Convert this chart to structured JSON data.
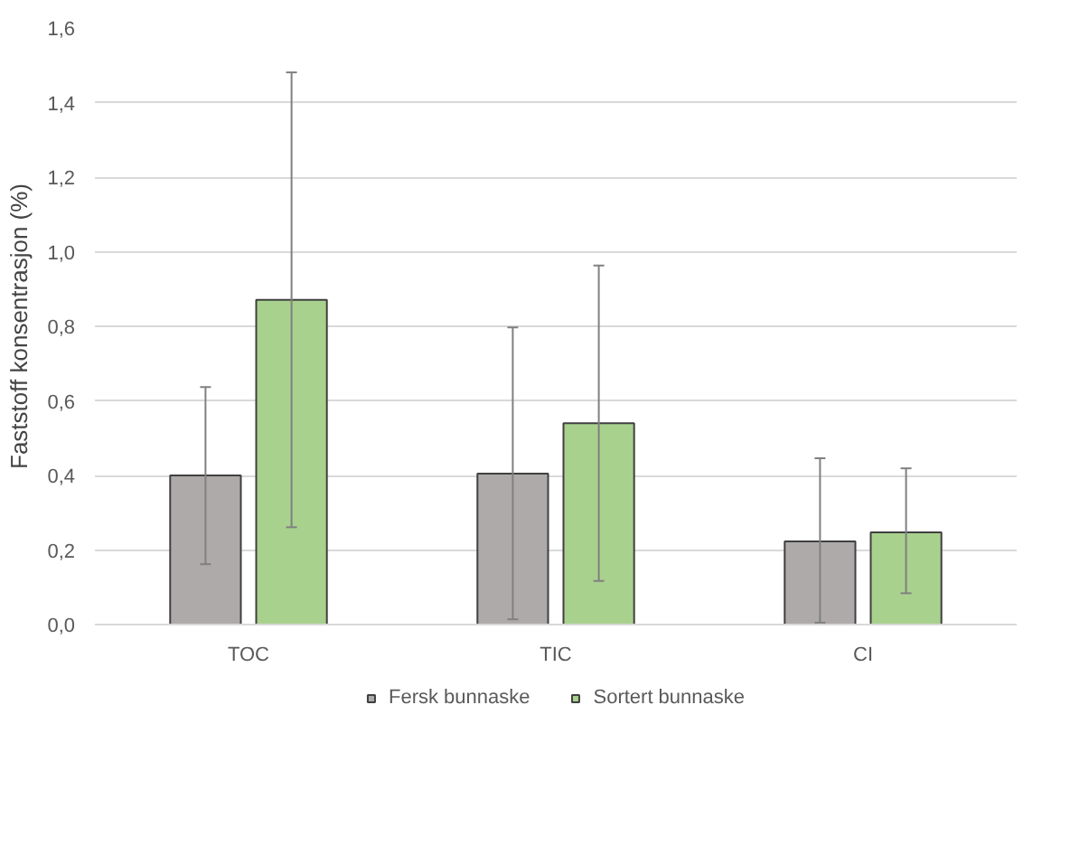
{
  "chart_data": {
    "type": "bar",
    "ylabel": "Faststoff konsentrasjon (%)",
    "categories": [
      "TOC",
      "TIC",
      "CI"
    ],
    "series": [
      {
        "name": "Fersk bunnaske",
        "color": "#aeaaaa",
        "values": [
          0.4,
          0.405,
          0.223
        ],
        "errors": [
          [
            0.162,
            0.637
          ],
          [
            0.014,
            0.797
          ],
          [
            0.005,
            0.446
          ]
        ]
      },
      {
        "name": "Sortert bunnaske",
        "color": "#a9d18e",
        "values": [
          0.871,
          0.54,
          0.247
        ],
        "errors": [
          [
            0.261,
            1.481
          ],
          [
            0.117,
            0.963
          ],
          [
            0.084,
            0.419
          ]
        ]
      }
    ],
    "ylim": [
      0,
      1.6
    ],
    "yticks": [
      {
        "value": 0,
        "label": "0,0"
      },
      {
        "value": 0.2,
        "label": "0,2"
      },
      {
        "value": 0.4,
        "label": "0,4"
      },
      {
        "value": 0.6,
        "label": "0,6"
      },
      {
        "value": 0.8,
        "label": "0,8"
      },
      {
        "value": 1.0,
        "label": "1,0"
      },
      {
        "value": 1.2,
        "label": "1,2"
      },
      {
        "value": 1.4,
        "label": "1,4"
      },
      {
        "value": 1.6,
        "label": "1,6"
      }
    ],
    "grid": "y",
    "legend": "bottom"
  }
}
